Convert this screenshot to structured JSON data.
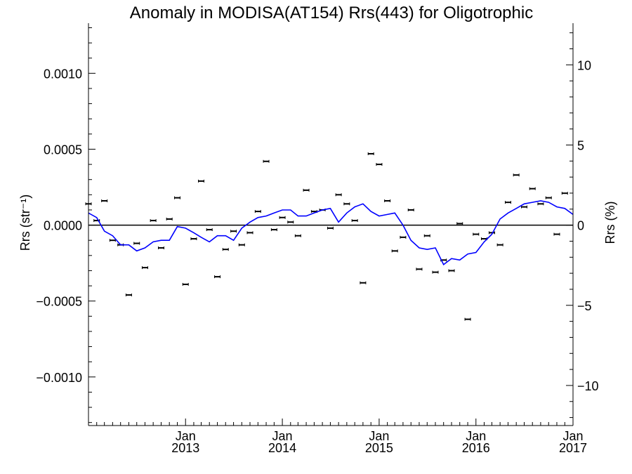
{
  "chart_data": {
    "type": "scatter",
    "title": "Anomaly in MODISA(AT154) Rrs(443) for Oligotrophic",
    "ylabel": "Rrs (str⁻¹)",
    "y2label": "Rrs (%)",
    "xlabel": "",
    "xlim": [
      "2012-01-01",
      "2017-01-01"
    ],
    "ylim": [
      -0.00132,
      0.00133
    ],
    "y2lim": [
      -12.5,
      12.6
    ],
    "yticks": [
      {
        "v": 0.001,
        "label": "0.0010"
      },
      {
        "v": 0.0005,
        "label": "0.0005"
      },
      {
        "v": 0.0,
        "label": "0.0000"
      },
      {
        "v": -0.0005,
        "label": "−0.0005"
      },
      {
        "v": -0.001,
        "label": "−0.0010"
      }
    ],
    "y2ticks": [
      {
        "v": 10,
        "label": "10"
      },
      {
        "v": 5,
        "label": "5"
      },
      {
        "v": 0,
        "label": "0"
      },
      {
        "v": -5,
        "label": "−5"
      },
      {
        "v": -10,
        "label": "−10"
      }
    ],
    "xticks": [
      {
        "date": "2013-01-01",
        "month": "Jan",
        "year": "2013"
      },
      {
        "date": "2014-01-01",
        "month": "Jan",
        "year": "2014"
      },
      {
        "date": "2015-01-01",
        "month": "Jan",
        "year": "2015"
      },
      {
        "date": "2016-01-01",
        "month": "Jan",
        "year": "2016"
      },
      {
        "date": "2017-01-01",
        "month": "Jan",
        "year": "2017"
      }
    ],
    "grid": false,
    "zero_line": true,
    "series": [
      {
        "kind": "points",
        "color": "#000000",
        "points": [
          {
            "x": "2012-01-01",
            "y": 0.00014
          },
          {
            "x": "2012-02-01",
            "y": 3e-05
          },
          {
            "x": "2012-03-01",
            "y": 0.00016
          },
          {
            "x": "2012-04-01",
            "y": -0.0001
          },
          {
            "x": "2012-05-01",
            "y": -0.00013
          },
          {
            "x": "2012-06-01",
            "y": -0.00046
          },
          {
            "x": "2012-07-01",
            "y": -0.00012
          },
          {
            "x": "2012-08-01",
            "y": -0.00028
          },
          {
            "x": "2012-09-01",
            "y": 3e-05
          },
          {
            "x": "2012-10-01",
            "y": -0.00015
          },
          {
            "x": "2012-11-01",
            "y": 4e-05
          },
          {
            "x": "2012-12-01",
            "y": 0.00018
          },
          {
            "x": "2013-01-01",
            "y": -0.00039
          },
          {
            "x": "2013-02-01",
            "y": -9e-05
          },
          {
            "x": "2013-03-01",
            "y": 0.00029
          },
          {
            "x": "2013-04-01",
            "y": -3e-05
          },
          {
            "x": "2013-05-01",
            "y": -0.00034
          },
          {
            "x": "2013-06-01",
            "y": -0.00016
          },
          {
            "x": "2013-07-01",
            "y": -4e-05
          },
          {
            "x": "2013-08-01",
            "y": -0.00013
          },
          {
            "x": "2013-09-01",
            "y": -5e-05
          },
          {
            "x": "2013-10-01",
            "y": 9e-05
          },
          {
            "x": "2013-11-01",
            "y": 0.00042
          },
          {
            "x": "2013-12-01",
            "y": -3e-05
          },
          {
            "x": "2014-01-01",
            "y": 5e-05
          },
          {
            "x": "2014-02-01",
            "y": 2e-05
          },
          {
            "x": "2014-03-01",
            "y": -7e-05
          },
          {
            "x": "2014-04-01",
            "y": 0.00023
          },
          {
            "x": "2014-05-01",
            "y": 9e-05
          },
          {
            "x": "2014-06-01",
            "y": 0.0001
          },
          {
            "x": "2014-07-01",
            "y": -2e-05
          },
          {
            "x": "2014-08-01",
            "y": 0.0002
          },
          {
            "x": "2014-09-01",
            "y": 0.00014
          },
          {
            "x": "2014-10-01",
            "y": 3e-05
          },
          {
            "x": "2014-11-01",
            "y": -0.00038
          },
          {
            "x": "2014-12-01",
            "y": 0.00047
          },
          {
            "x": "2015-01-01",
            "y": 0.0004
          },
          {
            "x": "2015-02-01",
            "y": 0.00016
          },
          {
            "x": "2015-03-01",
            "y": -0.00017
          },
          {
            "x": "2015-04-01",
            "y": -8e-05
          },
          {
            "x": "2015-05-01",
            "y": 0.0001
          },
          {
            "x": "2015-06-01",
            "y": -0.00029
          },
          {
            "x": "2015-07-01",
            "y": -7e-05
          },
          {
            "x": "2015-08-01",
            "y": -0.00031
          },
          {
            "x": "2015-09-01",
            "y": -0.00023
          },
          {
            "x": "2015-10-01",
            "y": -0.0003
          },
          {
            "x": "2015-11-01",
            "y": 1e-05
          },
          {
            "x": "2015-12-01",
            "y": -0.00062
          },
          {
            "x": "2016-01-01",
            "y": -6e-05
          },
          {
            "x": "2016-02-01",
            "y": -9e-05
          },
          {
            "x": "2016-03-01",
            "y": -5e-05
          },
          {
            "x": "2016-04-01",
            "y": -0.00013
          },
          {
            "x": "2016-05-01",
            "y": 0.00015
          },
          {
            "x": "2016-06-01",
            "y": 0.00033
          },
          {
            "x": "2016-07-01",
            "y": 0.00012
          },
          {
            "x": "2016-08-01",
            "y": 0.00024
          },
          {
            "x": "2016-09-01",
            "y": 0.00014
          },
          {
            "x": "2016-10-01",
            "y": 0.00018
          },
          {
            "x": "2016-11-01",
            "y": -6e-05
          },
          {
            "x": "2016-12-01",
            "y": 0.00021
          }
        ]
      },
      {
        "kind": "line",
        "color": "#0000ff",
        "points": [
          {
            "x": "2012-01-01",
            "y": 8e-05
          },
          {
            "x": "2012-02-01",
            "y": 5e-05
          },
          {
            "x": "2012-03-01",
            "y": -4e-05
          },
          {
            "x": "2012-04-01",
            "y": -7e-05
          },
          {
            "x": "2012-05-01",
            "y": -0.00013
          },
          {
            "x": "2012-06-01",
            "y": -0.00013
          },
          {
            "x": "2012-07-01",
            "y": -0.00017
          },
          {
            "x": "2012-08-01",
            "y": -0.00015
          },
          {
            "x": "2012-09-01",
            "y": -0.00011
          },
          {
            "x": "2012-10-01",
            "y": -0.0001
          },
          {
            "x": "2012-11-01",
            "y": -0.0001
          },
          {
            "x": "2012-12-01",
            "y": -1e-05
          },
          {
            "x": "2013-01-01",
            "y": -2e-05
          },
          {
            "x": "2013-02-01",
            "y": -5e-05
          },
          {
            "x": "2013-03-01",
            "y": -8e-05
          },
          {
            "x": "2013-04-01",
            "y": -0.00011
          },
          {
            "x": "2013-05-01",
            "y": -7e-05
          },
          {
            "x": "2013-06-01",
            "y": -7e-05
          },
          {
            "x": "2013-07-01",
            "y": -0.0001
          },
          {
            "x": "2013-08-01",
            "y": -2e-05
          },
          {
            "x": "2013-09-01",
            "y": 2e-05
          },
          {
            "x": "2013-10-01",
            "y": 5e-05
          },
          {
            "x": "2013-11-01",
            "y": 6e-05
          },
          {
            "x": "2013-12-01",
            "y": 8e-05
          },
          {
            "x": "2014-01-01",
            "y": 0.0001
          },
          {
            "x": "2014-02-01",
            "y": 0.0001
          },
          {
            "x": "2014-03-01",
            "y": 6e-05
          },
          {
            "x": "2014-04-01",
            "y": 6e-05
          },
          {
            "x": "2014-05-01",
            "y": 8e-05
          },
          {
            "x": "2014-06-01",
            "y": 0.0001
          },
          {
            "x": "2014-07-01",
            "y": 0.00011
          },
          {
            "x": "2014-08-01",
            "y": 2e-05
          },
          {
            "x": "2014-09-01",
            "y": 8e-05
          },
          {
            "x": "2014-10-01",
            "y": 0.00012
          },
          {
            "x": "2014-11-01",
            "y": 0.00014
          },
          {
            "x": "2014-12-01",
            "y": 9e-05
          },
          {
            "x": "2015-01-01",
            "y": 6e-05
          },
          {
            "x": "2015-02-01",
            "y": 7e-05
          },
          {
            "x": "2015-03-01",
            "y": 8e-05
          },
          {
            "x": "2015-04-01",
            "y": 0.0
          },
          {
            "x": "2015-05-01",
            "y": -0.0001
          },
          {
            "x": "2015-06-01",
            "y": -0.00015
          },
          {
            "x": "2015-07-01",
            "y": -0.00016
          },
          {
            "x": "2015-08-01",
            "y": -0.00015
          },
          {
            "x": "2015-09-01",
            "y": -0.00026
          },
          {
            "x": "2015-10-01",
            "y": -0.00022
          },
          {
            "x": "2015-11-01",
            "y": -0.00023
          },
          {
            "x": "2015-12-01",
            "y": -0.00019
          },
          {
            "x": "2016-01-01",
            "y": -0.00018
          },
          {
            "x": "2016-02-01",
            "y": -0.00011
          },
          {
            "x": "2016-03-01",
            "y": -6e-05
          },
          {
            "x": "2016-04-01",
            "y": 4e-05
          },
          {
            "x": "2016-05-01",
            "y": 8e-05
          },
          {
            "x": "2016-06-01",
            "y": 0.00011
          },
          {
            "x": "2016-07-01",
            "y": 0.00014
          },
          {
            "x": "2016-08-01",
            "y": 0.00015
          },
          {
            "x": "2016-09-01",
            "y": 0.00016
          },
          {
            "x": "2016-10-01",
            "y": 0.00015
          },
          {
            "x": "2016-11-01",
            "y": 0.00012
          },
          {
            "x": "2016-12-01",
            "y": 0.00011
          },
          {
            "x": "2017-01-01",
            "y": 7e-05
          }
        ]
      }
    ]
  }
}
